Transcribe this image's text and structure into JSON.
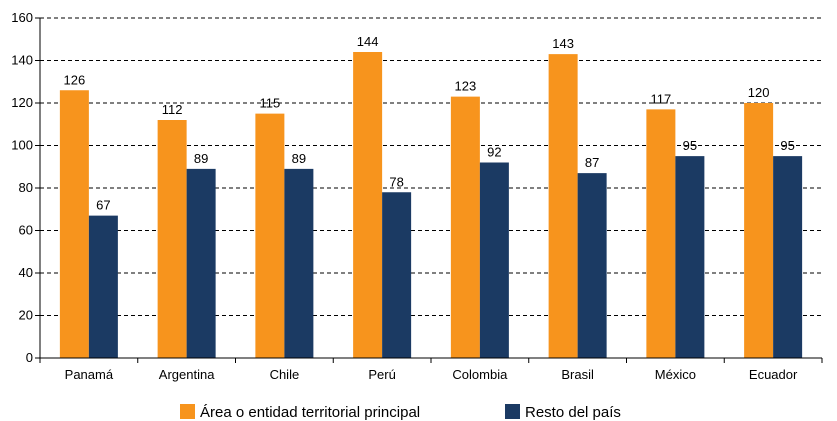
{
  "chart_data": {
    "type": "bar",
    "categories": [
      "Panamá",
      "Argentina",
      "Chile",
      "Perú",
      "Colombia",
      "Brasil",
      "México",
      "Ecuador"
    ],
    "series": [
      {
        "name": "Área o entidad territorial principal",
        "values": [
          126,
          112,
          115,
          144,
          123,
          143,
          117,
          120
        ],
        "color": "#F7941D"
      },
      {
        "name": "Resto del país",
        "values": [
          67,
          89,
          89,
          78,
          92,
          87,
          95,
          95
        ],
        "color": "#1B3A63"
      }
    ],
    "ylim": [
      0,
      160
    ],
    "yticks": [
      0,
      20,
      40,
      60,
      80,
      100,
      120,
      140,
      160
    ],
    "grid": true,
    "legend_position": "bottom"
  }
}
